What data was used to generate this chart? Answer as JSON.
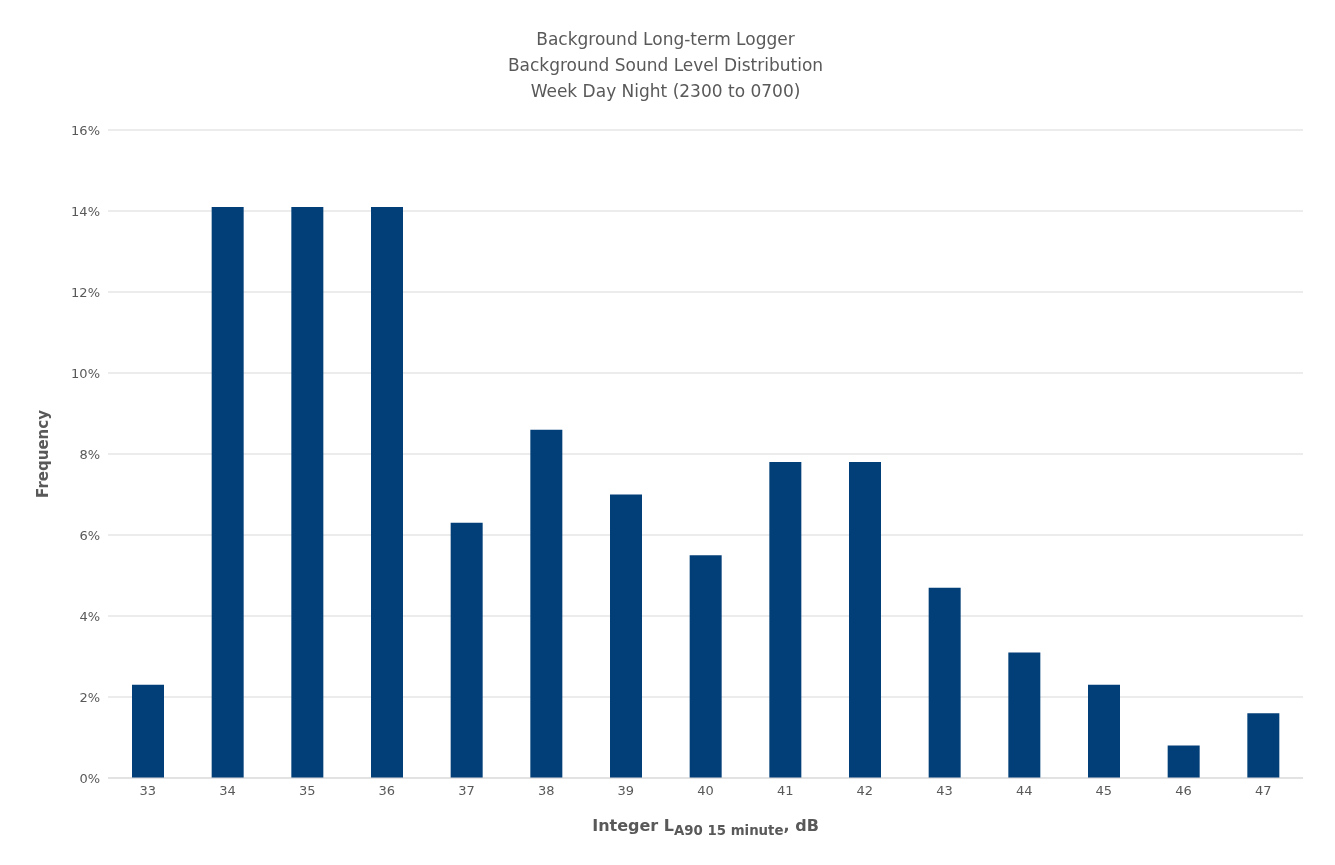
{
  "chart_data": {
    "type": "bar",
    "title": "Background Long-term Logger",
    "subtitle": "Background Sound Level Distribution\nWeek Day Night (2300 to 0700)",
    "xlabel": "Integer L$_{A90 15 minute}$, dB",
    "ylabel": "Frequency",
    "categories": [
      "33",
      "34",
      "35",
      "36",
      "37",
      "38",
      "39",
      "40",
      "41",
      "42",
      "43",
      "44",
      "45",
      "46",
      "47"
    ],
    "values": [
      2.3,
      14.1,
      14.1,
      14.1,
      6.3,
      8.6,
      7.0,
      5.5,
      7.8,
      7.8,
      4.7,
      3.1,
      2.3,
      0.8,
      1.6
    ],
    "color": "#023f78",
    "ylim": [
      0,
      16
    ],
    "yticks": [
      {
        "value": 0,
        "label": "0%"
      },
      {
        "value": 2,
        "label": "2%"
      },
      {
        "value": 4,
        "label": "4%"
      },
      {
        "value": 6,
        "label": "6%"
      },
      {
        "value": 8,
        "label": "8%"
      },
      {
        "value": 10,
        "label": "10%"
      },
      {
        "value": 12,
        "label": "12%"
      },
      {
        "value": 14,
        "label": "14%"
      },
      {
        "value": 16,
        "label": "16%"
      }
    ],
    "grid": "y"
  }
}
